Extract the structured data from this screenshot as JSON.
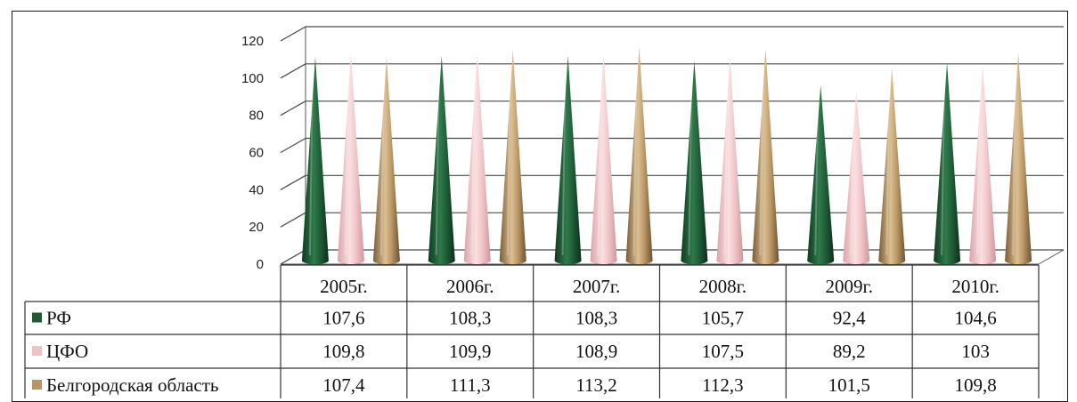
{
  "chart_data": {
    "type": "bar",
    "subtype": "3d-cone",
    "categories": [
      "2005г.",
      "2006г.",
      "2007г.",
      "2008г.",
      "2009г.",
      "2010г."
    ],
    "series": [
      {
        "name": "РФ",
        "values": [
          107.6,
          108.3,
          108.3,
          105.7,
          92.4,
          104.6
        ],
        "color": "#1f5a35"
      },
      {
        "name": "ЦФО",
        "values": [
          109.8,
          109.9,
          108.9,
          107.5,
          89.2,
          103
        ],
        "color": "#efc3c6"
      },
      {
        "name": "Белгородская область",
        "values": [
          107.4,
          111.3,
          113.2,
          112.3,
          101.5,
          109.8
        ],
        "color": "#b89565"
      }
    ],
    "ylim": [
      0,
      120
    ],
    "yticks": [
      0,
      20,
      40,
      60,
      80,
      100,
      120
    ],
    "grid": true,
    "data_table": true,
    "table_values": [
      [
        "107,6",
        "108,3",
        "108,3",
        "105,7",
        "92,4",
        "104,6"
      ],
      [
        "109,8",
        "109,9",
        "108,9",
        "107,5",
        "89,2",
        "103"
      ],
      [
        "107,4",
        "111,3",
        "113,2",
        "112,3",
        "101,5",
        "109,8"
      ]
    ]
  }
}
